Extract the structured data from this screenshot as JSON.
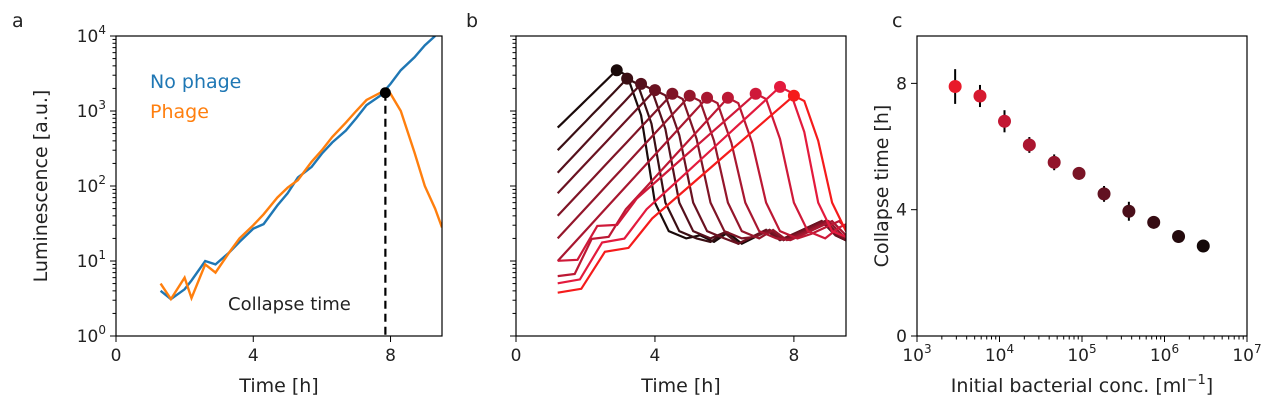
{
  "chart_data": [
    {
      "panel": "a",
      "type": "line",
      "xlabel": "Time [h]",
      "ylabel": "Luminescence [a.u.]",
      "xlim": [
        0,
        9.5
      ],
      "ylim": [
        1,
        10000
      ],
      "yscale": "log",
      "xticks": [
        "0",
        "4",
        "8"
      ],
      "yticks": [
        "10^0",
        "10^1",
        "10^2",
        "10^3",
        "10^4"
      ],
      "annotation": "Collapse time",
      "collapse_time": 7.85,
      "series": [
        {
          "name": "No phage",
          "color": "#1f77b4",
          "x": [
            1.3,
            1.6,
            2.0,
            2.2,
            2.6,
            2.9,
            3.3,
            3.6,
            4.0,
            4.3,
            4.7,
            5.0,
            5.3,
            5.7,
            6.0,
            6.3,
            6.7,
            7.0,
            7.3,
            7.7,
            8.0,
            8.3,
            8.7,
            9.0,
            9.3
          ],
          "y": [
            4,
            3.1,
            4.2,
            5.5,
            10,
            9,
            13,
            18,
            27,
            31,
            55,
            80,
            130,
            180,
            270,
            380,
            550,
            800,
            1200,
            1600,
            2300,
            3500,
            5200,
            7500,
            10000
          ]
        },
        {
          "name": "Phage",
          "color": "#ff7f0e",
          "x": [
            1.3,
            1.6,
            2.0,
            2.2,
            2.6,
            2.9,
            3.3,
            3.6,
            4.0,
            4.3,
            4.7,
            5.0,
            5.3,
            5.7,
            6.0,
            6.3,
            6.7,
            7.0,
            7.3,
            7.7,
            8.0,
            8.3,
            8.7,
            9.0,
            9.3,
            9.5
          ],
          "y": [
            5,
            3.1,
            6,
            3.2,
            9,
            7,
            13,
            20,
            30,
            42,
            70,
            95,
            120,
            210,
            300,
            450,
            700,
            1000,
            1400,
            1750,
            1700,
            1000,
            280,
            100,
            50,
            28
          ]
        }
      ]
    },
    {
      "panel": "b",
      "type": "line",
      "xlabel": "Time [h]",
      "ylabel": "",
      "xlim": [
        0,
        9.5
      ],
      "ylim": [
        1,
        10000
      ],
      "yscale": "log",
      "xticks": [
        "0",
        "4",
        "8"
      ],
      "yticks": [],
      "series": [
        {
          "color": "#1a0a0a",
          "start": 600,
          "peak_t": 2.9,
          "peak": 3500
        },
        {
          "color": "#3a0f14",
          "start": 300,
          "peak_t": 3.2,
          "peak": 2700
        },
        {
          "color": "#55101c",
          "start": 150,
          "peak_t": 3.6,
          "peak": 2300
        },
        {
          "color": "#6a1221",
          "start": 80,
          "peak_t": 4.0,
          "peak": 1900
        },
        {
          "color": "#7f1426",
          "start": 40,
          "peak_t": 4.5,
          "peak": 1700
        },
        {
          "color": "#94162b",
          "start": 20,
          "peak_t": 5.0,
          "peak": 1600
        },
        {
          "color": "#a81730",
          "start": 10,
          "peak_t": 5.5,
          "peak": 1500
        },
        {
          "color": "#bc1834",
          "start": 5,
          "peak_t": 6.1,
          "peak": 1500
        },
        {
          "color": "#cf1939",
          "start": 8,
          "peak_t": 6.9,
          "peak": 1700
        },
        {
          "color": "#e31a3d",
          "start": 4,
          "peak_t": 7.6,
          "peak": 2100
        },
        {
          "color": "#f51b1b",
          "start": 3,
          "peak_t": 8.0,
          "peak": 1600
        }
      ]
    },
    {
      "panel": "c",
      "type": "scatter",
      "xlabel": "Initial bacterial conc. [ml⁻¹]",
      "ylabel": "Collapse time [h]",
      "xscale": "log",
      "xlim": [
        1000,
        10000000
      ],
      "ylim": [
        0,
        9.5
      ],
      "xticks": [
        "10^3",
        "10^4",
        "10^5",
        "10^6",
        "10^7"
      ],
      "yticks": [
        "0",
        "4",
        "8"
      ],
      "points": [
        {
          "x": 2900,
          "y": 7.9,
          "err": 0.55,
          "color": "#e81a2a"
        },
        {
          "x": 5800,
          "y": 7.6,
          "err": 0.35,
          "color": "#d6192f"
        },
        {
          "x": 11500,
          "y": 6.8,
          "err": 0.35,
          "color": "#c31834"
        },
        {
          "x": 23000,
          "y": 6.05,
          "err": 0.25,
          "color": "#ab1630"
        },
        {
          "x": 46000,
          "y": 5.5,
          "err": 0.25,
          "color": "#92152b"
        },
        {
          "x": 92000,
          "y": 5.15,
          "err": 0.2,
          "color": "#7a1426"
        },
        {
          "x": 185000,
          "y": 4.5,
          "err": 0.25,
          "color": "#621221"
        },
        {
          "x": 370000,
          "y": 3.95,
          "err": 0.3,
          "color": "#4a0f1a"
        },
        {
          "x": 740000,
          "y": 3.6,
          "err": 0.2,
          "color": "#360c13"
        },
        {
          "x": 1480000,
          "y": 3.15,
          "err": 0.15,
          "color": "#240a0d"
        },
        {
          "x": 2950000,
          "y": 2.85,
          "err": 0.15,
          "color": "#140808"
        }
      ]
    }
  ]
}
